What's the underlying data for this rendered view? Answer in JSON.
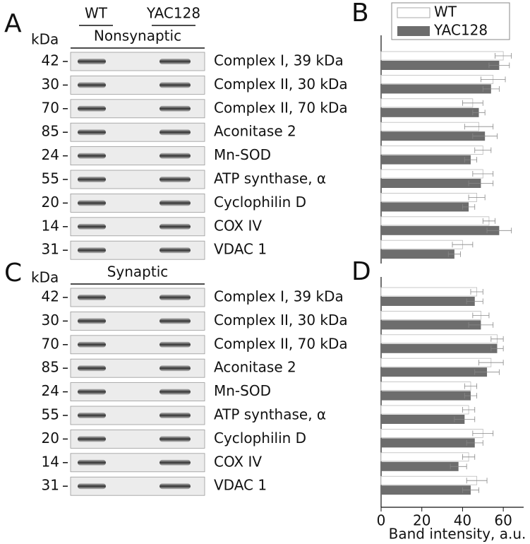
{
  "blots": [
    {
      "letter": "A",
      "unit": "kDa",
      "groups": [
        "WT",
        "YAC128"
      ],
      "fraction": "Nonsynaptic",
      "markers": [
        42,
        30,
        70,
        85,
        24,
        55,
        20,
        14,
        31
      ],
      "proteins": [
        "Complex I, 39 kDa",
        "Complex II, 30 kDa",
        "Complex II, 70 kDa",
        "Aconitase 2",
        "Mn-SOD",
        "ATP synthase, α",
        "Cyclophilin D",
        "COX IV",
        "VDAC 1"
      ]
    },
    {
      "letter": "C",
      "unit": "kDa",
      "fraction": "Synaptic",
      "markers": [
        42,
        30,
        70,
        85,
        24,
        55,
        20,
        14,
        31
      ],
      "proteins": [
        "Complex I, 39 kDa",
        "Complex II, 30 kDa",
        "Complex II, 70 kDa",
        "Aconitase 2",
        "Mn-SOD",
        "ATP synthase, α",
        "Cyclophilin D",
        "COX IV",
        "VDAC 1"
      ]
    }
  ],
  "chart_data": [
    {
      "type": "hbar",
      "letter": "B",
      "xlim": [
        0,
        70
      ],
      "series": [
        {
          "name": "WT",
          "color": "#ffffff",
          "values": [
            60,
            55,
            45,
            48,
            50,
            50,
            47,
            53,
            40
          ],
          "errors": [
            4,
            6,
            5,
            7,
            4,
            5,
            4,
            3,
            5
          ]
        },
        {
          "name": "YAC128",
          "color": "#6d6d6d",
          "values": [
            58,
            54,
            48,
            51,
            44,
            49,
            43,
            58,
            36
          ],
          "errors": [
            5,
            4,
            3,
            6,
            3,
            6,
            3,
            6,
            3
          ]
        }
      ]
    },
    {
      "type": "hbar",
      "letter": "D",
      "xlim": [
        0,
        70
      ],
      "xticks": [
        0,
        20,
        40,
        60
      ],
      "xlabel": "Band intensity, a.u.",
      "series": [
        {
          "color": "#ffffff",
          "values": [
            47,
            49,
            57,
            54,
            44,
            43,
            50,
            43,
            47
          ],
          "errors": [
            3,
            4,
            3,
            6,
            3,
            3,
            5,
            3,
            5
          ]
        },
        {
          "color": "#6d6d6d",
          "values": [
            46,
            49,
            57,
            52,
            44,
            41,
            46,
            38,
            44
          ],
          "errors": [
            4,
            6,
            3,
            6,
            3,
            5,
            4,
            4,
            4
          ]
        }
      ]
    }
  ]
}
